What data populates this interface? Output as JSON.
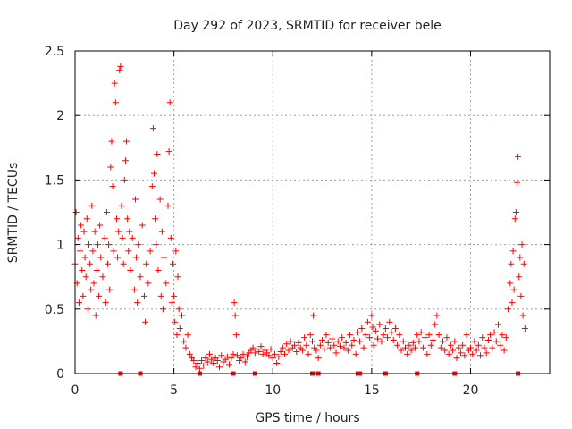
{
  "chart_data": {
    "type": "scatter",
    "title": "Day 292 of 2023, SRMTID for receiver bele",
    "xlabel": "GPS time / hours",
    "ylabel": "SRMTID / TECUs",
    "xlim": [
      0,
      24
    ],
    "ylim": [
      0,
      2.5
    ],
    "xticks": [
      0,
      5,
      10,
      15,
      20
    ],
    "xtick_labels": [
      "0",
      "5",
      "10",
      "15",
      "20"
    ],
    "yticks": [
      0,
      0.5,
      1,
      1.5,
      2,
      2.5
    ],
    "ytick_labels": [
      "0",
      "0.5",
      "1",
      "1.5",
      "2",
      "2.5"
    ],
    "grid": true,
    "marker": "+",
    "color": "#ff0000",
    "series": [
      {
        "name": "SRMTID",
        "points": [
          [
            0.0,
            0.85
          ],
          [
            0.05,
            1.25
          ],
          [
            0.1,
            0.7
          ],
          [
            0.15,
            1.05
          ],
          [
            0.2,
            0.55
          ],
          [
            0.25,
            0.95
          ],
          [
            0.3,
            1.15
          ],
          [
            0.35,
            0.8
          ],
          [
            0.4,
            0.6
          ],
          [
            0.45,
            1.1
          ],
          [
            0.5,
            0.9
          ],
          [
            0.55,
            0.75
          ],
          [
            0.6,
            1.2
          ],
          [
            0.65,
            0.5
          ],
          [
            0.7,
            1.0
          ],
          [
            0.75,
            0.85
          ],
          [
            0.8,
            0.65
          ],
          [
            0.85,
            1.3
          ],
          [
            0.9,
            0.95
          ],
          [
            0.95,
            0.7
          ],
          [
            1.0,
            1.1
          ],
          [
            1.05,
            0.45
          ],
          [
            1.1,
            0.8
          ],
          [
            1.15,
            1.0
          ],
          [
            1.2,
            0.6
          ],
          [
            1.25,
            1.15
          ],
          [
            1.3,
            0.9
          ],
          [
            1.4,
            0.75
          ],
          [
            1.5,
            1.05
          ],
          [
            1.55,
            0.55
          ],
          [
            1.6,
            1.25
          ],
          [
            1.65,
            0.85
          ],
          [
            1.7,
            1.0
          ],
          [
            1.75,
            0.65
          ],
          [
            1.8,
            1.6
          ],
          [
            1.85,
            1.8
          ],
          [
            1.9,
            1.45
          ],
          [
            1.95,
            0.95
          ],
          [
            2.0,
            2.25
          ],
          [
            2.05,
            2.1
          ],
          [
            2.1,
            1.2
          ],
          [
            2.15,
            0.9
          ],
          [
            2.2,
            1.1
          ],
          [
            2.25,
            2.35
          ],
          [
            2.3,
            2.38
          ],
          [
            2.35,
            1.3
          ],
          [
            2.4,
            1.05
          ],
          [
            2.45,
            0.85
          ],
          [
            2.5,
            1.5
          ],
          [
            2.55,
            1.65
          ],
          [
            2.6,
            1.8
          ],
          [
            2.65,
            1.2
          ],
          [
            2.7,
            0.95
          ],
          [
            2.75,
            1.1
          ],
          [
            2.8,
            0.8
          ],
          [
            2.9,
            1.05
          ],
          [
            3.0,
            0.65
          ],
          [
            3.05,
            1.35
          ],
          [
            3.1,
            0.9
          ],
          [
            3.15,
            0.55
          ],
          [
            3.2,
            1.0
          ],
          [
            3.3,
            0.75
          ],
          [
            3.4,
            1.15
          ],
          [
            3.5,
            0.6
          ],
          [
            3.55,
            0.4
          ],
          [
            3.6,
            0.85
          ],
          [
            3.7,
            0.7
          ],
          [
            3.8,
            0.95
          ],
          [
            3.9,
            1.45
          ],
          [
            3.95,
            1.9
          ],
          [
            4.0,
            1.55
          ],
          [
            4.05,
            1.2
          ],
          [
            4.1,
            1.0
          ],
          [
            4.15,
            1.7
          ],
          [
            4.2,
            0.8
          ],
          [
            4.3,
            1.35
          ],
          [
            4.35,
            0.6
          ],
          [
            4.4,
            1.1
          ],
          [
            4.45,
            0.5
          ],
          [
            4.5,
            0.9
          ],
          [
            4.6,
            0.7
          ],
          [
            4.7,
            1.3
          ],
          [
            4.75,
            1.72
          ],
          [
            4.8,
            2.1
          ],
          [
            4.85,
            1.05
          ],
          [
            4.9,
            0.55
          ],
          [
            4.95,
            0.85
          ],
          [
            5.0,
            0.6
          ],
          [
            5.05,
            0.4
          ],
          [
            5.1,
            0.95
          ],
          [
            5.15,
            0.3
          ],
          [
            5.2,
            0.75
          ],
          [
            5.25,
            0.5
          ],
          [
            5.3,
            0.35
          ],
          [
            5.4,
            0.45
          ],
          [
            5.5,
            0.25
          ],
          [
            5.6,
            0.2
          ],
          [
            5.7,
            0.3
          ],
          [
            5.8,
            0.15
          ],
          [
            5.9,
            0.12
          ],
          [
            6.0,
            0.1
          ],
          [
            6.1,
            0.05
          ],
          [
            6.2,
            0.08
          ],
          [
            6.3,
            0.04
          ],
          [
            6.4,
            0.1
          ],
          [
            6.5,
            0.06
          ],
          [
            6.6,
            0.12
          ],
          [
            6.7,
            0.09
          ],
          [
            6.8,
            0.15
          ],
          [
            6.9,
            0.11
          ],
          [
            7.0,
            0.08
          ],
          [
            7.1,
            0.12
          ],
          [
            7.2,
            0.1
          ],
          [
            7.3,
            0.05
          ],
          [
            7.4,
            0.14
          ],
          [
            7.5,
            0.09
          ],
          [
            7.6,
            0.11
          ],
          [
            7.7,
            0.13
          ],
          [
            7.8,
            0.07
          ],
          [
            7.9,
            0.12
          ],
          [
            8.0,
            0.15
          ],
          [
            8.05,
            0.55
          ],
          [
            8.1,
            0.45
          ],
          [
            8.15,
            0.3
          ],
          [
            8.2,
            0.14
          ],
          [
            8.3,
            0.1
          ],
          [
            8.4,
            0.12
          ],
          [
            8.5,
            0.15
          ],
          [
            8.6,
            0.09
          ],
          [
            8.7,
            0.13
          ],
          [
            8.8,
            0.16
          ],
          [
            8.9,
            0.18
          ],
          [
            9.0,
            0.2
          ],
          [
            9.1,
            0.16
          ],
          [
            9.2,
            0.19
          ],
          [
            9.3,
            0.17
          ],
          [
            9.4,
            0.21
          ],
          [
            9.5,
            0.15
          ],
          [
            9.6,
            0.18
          ],
          [
            9.7,
            0.16
          ],
          [
            9.8,
            0.14
          ],
          [
            9.9,
            0.19
          ],
          [
            10.0,
            0.12
          ],
          [
            10.1,
            0.15
          ],
          [
            10.2,
            0.08
          ],
          [
            10.3,
            0.13
          ],
          [
            10.4,
            0.17
          ],
          [
            10.5,
            0.2
          ],
          [
            10.6,
            0.15
          ],
          [
            10.7,
            0.23
          ],
          [
            10.8,
            0.18
          ],
          [
            10.9,
            0.25
          ],
          [
            11.0,
            0.2
          ],
          [
            11.1,
            0.22
          ],
          [
            11.2,
            0.17
          ],
          [
            11.3,
            0.24
          ],
          [
            11.4,
            0.2
          ],
          [
            11.5,
            0.18
          ],
          [
            11.6,
            0.28
          ],
          [
            11.7,
            0.22
          ],
          [
            11.8,
            0.15
          ],
          [
            11.9,
            0.3
          ],
          [
            12.0,
            0.25
          ],
          [
            12.05,
            0.45
          ],
          [
            12.1,
            0.2
          ],
          [
            12.2,
            0.18
          ],
          [
            12.3,
            0.12
          ],
          [
            12.4,
            0.22
          ],
          [
            12.5,
            0.26
          ],
          [
            12.6,
            0.19
          ],
          [
            12.7,
            0.3
          ],
          [
            12.8,
            0.24
          ],
          [
            12.9,
            0.2
          ],
          [
            13.0,
            0.27
          ],
          [
            13.1,
            0.22
          ],
          [
            13.2,
            0.16
          ],
          [
            13.3,
            0.25
          ],
          [
            13.4,
            0.21
          ],
          [
            13.5,
            0.28
          ],
          [
            13.6,
            0.2
          ],
          [
            13.7,
            0.24
          ],
          [
            13.8,
            0.18
          ],
          [
            13.9,
            0.3
          ],
          [
            14.0,
            0.22
          ],
          [
            14.1,
            0.26
          ],
          [
            14.2,
            0.15
          ],
          [
            14.3,
            0.32
          ],
          [
            14.4,
            0.25
          ],
          [
            14.5,
            0.35
          ],
          [
            14.6,
            0.2
          ],
          [
            14.7,
            0.3
          ],
          [
            14.8,
            0.4
          ],
          [
            14.9,
            0.28
          ],
          [
            15.0,
            0.45
          ],
          [
            15.05,
            0.36
          ],
          [
            15.1,
            0.22
          ],
          [
            15.2,
            0.33
          ],
          [
            15.3,
            0.27
          ],
          [
            15.4,
            0.38
          ],
          [
            15.5,
            0.25
          ],
          [
            15.6,
            0.3
          ],
          [
            15.7,
            0.35
          ],
          [
            15.8,
            0.28
          ],
          [
            15.9,
            0.4
          ],
          [
            16.0,
            0.32
          ],
          [
            16.1,
            0.26
          ],
          [
            16.2,
            0.35
          ],
          [
            16.3,
            0.22
          ],
          [
            16.4,
            0.3
          ],
          [
            16.5,
            0.18
          ],
          [
            16.6,
            0.25
          ],
          [
            16.7,
            0.2
          ],
          [
            16.8,
            0.15
          ],
          [
            16.9,
            0.22
          ],
          [
            17.0,
            0.18
          ],
          [
            17.1,
            0.24
          ],
          [
            17.2,
            0.2
          ],
          [
            17.3,
            0.3
          ],
          [
            17.4,
            0.25
          ],
          [
            17.5,
            0.32
          ],
          [
            17.6,
            0.2
          ],
          [
            17.7,
            0.28
          ],
          [
            17.8,
            0.15
          ],
          [
            17.9,
            0.3
          ],
          [
            18.0,
            0.22
          ],
          [
            18.1,
            0.26
          ],
          [
            18.2,
            0.38
          ],
          [
            18.3,
            0.45
          ],
          [
            18.4,
            0.3
          ],
          [
            18.5,
            0.2
          ],
          [
            18.6,
            0.25
          ],
          [
            18.7,
            0.18
          ],
          [
            18.8,
            0.28
          ],
          [
            18.9,
            0.15
          ],
          [
            19.0,
            0.22
          ],
          [
            19.1,
            0.18
          ],
          [
            19.2,
            0.25
          ],
          [
            19.3,
            0.12
          ],
          [
            19.4,
            0.2
          ],
          [
            19.5,
            0.16
          ],
          [
            19.6,
            0.22
          ],
          [
            19.7,
            0.14
          ],
          [
            19.8,
            0.3
          ],
          [
            19.9,
            0.18
          ],
          [
            20.0,
            0.2
          ],
          [
            20.1,
            0.15
          ],
          [
            20.2,
            0.25
          ],
          [
            20.3,
            0.18
          ],
          [
            20.4,
            0.22
          ],
          [
            20.5,
            0.14
          ],
          [
            20.6,
            0.28
          ],
          [
            20.7,
            0.2
          ],
          [
            20.8,
            0.16
          ],
          [
            20.9,
            0.26
          ],
          [
            21.0,
            0.3
          ],
          [
            21.1,
            0.2
          ],
          [
            21.2,
            0.32
          ],
          [
            21.3,
            0.25
          ],
          [
            21.4,
            0.38
          ],
          [
            21.5,
            0.22
          ],
          [
            21.6,
            0.3
          ],
          [
            21.7,
            0.18
          ],
          [
            21.8,
            0.28
          ],
          [
            21.9,
            0.5
          ],
          [
            22.0,
            0.7
          ],
          [
            22.05,
            0.85
          ],
          [
            22.1,
            0.55
          ],
          [
            22.15,
            0.95
          ],
          [
            22.2,
            0.65
          ],
          [
            22.25,
            1.2
          ],
          [
            22.3,
            1.25
          ],
          [
            22.35,
            1.48
          ],
          [
            22.4,
            1.68
          ],
          [
            22.45,
            0.75
          ],
          [
            22.5,
            0.9
          ],
          [
            22.55,
            0.6
          ],
          [
            22.6,
            1.0
          ],
          [
            22.65,
            0.45
          ],
          [
            22.7,
            0.85
          ],
          [
            22.75,
            0.35
          ]
        ]
      }
    ],
    "baseline_markers_x": [
      2.3,
      3.3,
      6.3,
      8.0,
      9.1,
      12.0,
      12.3,
      14.3,
      14.4,
      15.7,
      17.3,
      19.2,
      22.4
    ]
  }
}
